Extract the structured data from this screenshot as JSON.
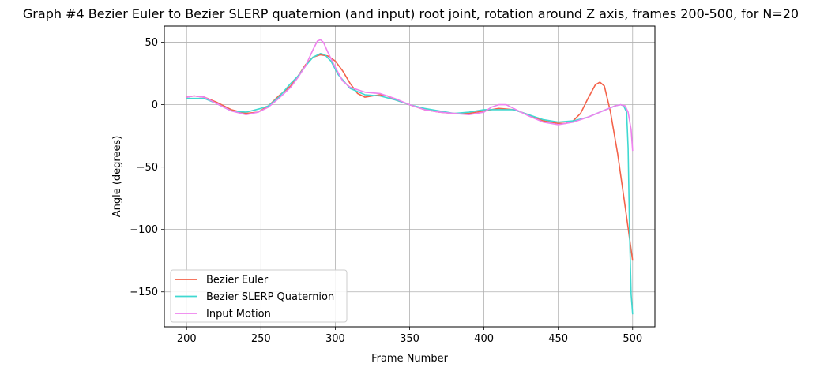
{
  "chart_data": {
    "type": "line",
    "title": "Graph #4 Bezier Euler to Bezier SLERP quaternion (and input) root joint, rotation around Z axis, frames 200-500, for N=20",
    "xlabel": "Frame Number",
    "ylabel": "Angle (degrees)",
    "xlim": [
      185,
      515
    ],
    "ylim": [
      -178,
      63
    ],
    "xticks": [
      200,
      250,
      300,
      350,
      400,
      450,
      500
    ],
    "yticks": [
      50,
      0,
      -50,
      -100,
      -150
    ],
    "grid": true,
    "legend_position": "lower-left",
    "series": [
      {
        "name": "Bezier Euler",
        "color": "#f4624a",
        "points": [
          [
            200,
            6
          ],
          [
            205,
            7
          ],
          [
            212,
            6
          ],
          [
            220,
            2
          ],
          [
            230,
            -4
          ],
          [
            240,
            -7
          ],
          [
            248,
            -6
          ],
          [
            255,
            -1
          ],
          [
            262,
            7
          ],
          [
            270,
            15
          ],
          [
            275,
            23
          ],
          [
            280,
            32
          ],
          [
            285,
            38
          ],
          [
            290,
            40
          ],
          [
            295,
            39
          ],
          [
            300,
            35
          ],
          [
            305,
            27
          ],
          [
            310,
            17
          ],
          [
            315,
            9
          ],
          [
            320,
            6
          ],
          [
            325,
            7
          ],
          [
            330,
            8
          ],
          [
            335,
            7
          ],
          [
            340,
            4
          ],
          [
            350,
            0
          ],
          [
            360,
            -4
          ],
          [
            370,
            -6
          ],
          [
            380,
            -7
          ],
          [
            390,
            -7
          ],
          [
            400,
            -5
          ],
          [
            410,
            -3
          ],
          [
            420,
            -4
          ],
          [
            430,
            -8
          ],
          [
            440,
            -13
          ],
          [
            450,
            -15
          ],
          [
            455,
            -15
          ],
          [
            460,
            -13
          ],
          [
            465,
            -7
          ],
          [
            470,
            5
          ],
          [
            475,
            16
          ],
          [
            478,
            18
          ],
          [
            481,
            15
          ],
          [
            485,
            -5
          ],
          [
            490,
            -40
          ],
          [
            495,
            -82
          ],
          [
            500,
            -125
          ]
        ]
      },
      {
        "name": "Bezier SLERP Quaternion",
        "color": "#3fd9d1",
        "points": [
          [
            200,
            5
          ],
          [
            205,
            5
          ],
          [
            212,
            5
          ],
          [
            220,
            1
          ],
          [
            230,
            -5
          ],
          [
            240,
            -6
          ],
          [
            250,
            -3
          ],
          [
            255,
            -1
          ],
          [
            262,
            6
          ],
          [
            270,
            17
          ],
          [
            275,
            23
          ],
          [
            280,
            31
          ],
          [
            285,
            38
          ],
          [
            290,
            41
          ],
          [
            293,
            40
          ],
          [
            297,
            35
          ],
          [
            302,
            24
          ],
          [
            310,
            13
          ],
          [
            320,
            8
          ],
          [
            330,
            7
          ],
          [
            340,
            4
          ],
          [
            350,
            0
          ],
          [
            360,
            -3
          ],
          [
            370,
            -5
          ],
          [
            380,
            -7
          ],
          [
            390,
            -6
          ],
          [
            400,
            -4
          ],
          [
            410,
            -4
          ],
          [
            420,
            -4
          ],
          [
            430,
            -8
          ],
          [
            440,
            -12
          ],
          [
            450,
            -14
          ],
          [
            460,
            -13
          ],
          [
            470,
            -10
          ],
          [
            480,
            -5
          ],
          [
            488,
            -1
          ],
          [
            492,
            0
          ],
          [
            494,
            -1
          ],
          [
            496,
            -6
          ],
          [
            497,
            -35
          ],
          [
            498,
            -105
          ],
          [
            499,
            -152
          ],
          [
            500,
            -168
          ]
        ]
      },
      {
        "name": "Input Motion",
        "color": "#ee82ee",
        "points": [
          [
            200,
            6
          ],
          [
            205,
            7
          ],
          [
            212,
            6
          ],
          [
            220,
            1
          ],
          [
            230,
            -5
          ],
          [
            240,
            -8
          ],
          [
            248,
            -6
          ],
          [
            255,
            -2
          ],
          [
            262,
            5
          ],
          [
            270,
            14
          ],
          [
            275,
            22
          ],
          [
            280,
            31
          ],
          [
            285,
            44
          ],
          [
            288,
            51
          ],
          [
            290,
            52
          ],
          [
            292,
            50
          ],
          [
            295,
            42
          ],
          [
            300,
            30
          ],
          [
            305,
            19
          ],
          [
            310,
            14
          ],
          [
            320,
            10
          ],
          [
            330,
            9
          ],
          [
            340,
            5
          ],
          [
            350,
            0
          ],
          [
            360,
            -4
          ],
          [
            370,
            -6
          ],
          [
            380,
            -7
          ],
          [
            390,
            -8
          ],
          [
            400,
            -6
          ],
          [
            405,
            -2
          ],
          [
            410,
            0
          ],
          [
            415,
            0
          ],
          [
            420,
            -3
          ],
          [
            430,
            -9
          ],
          [
            440,
            -14
          ],
          [
            450,
            -16
          ],
          [
            460,
            -14
          ],
          [
            470,
            -10
          ],
          [
            480,
            -5
          ],
          [
            488,
            -1
          ],
          [
            492,
            0
          ],
          [
            495,
            -1
          ],
          [
            497,
            -6
          ],
          [
            499,
            -20
          ],
          [
            500,
            -37
          ]
        ]
      }
    ]
  }
}
